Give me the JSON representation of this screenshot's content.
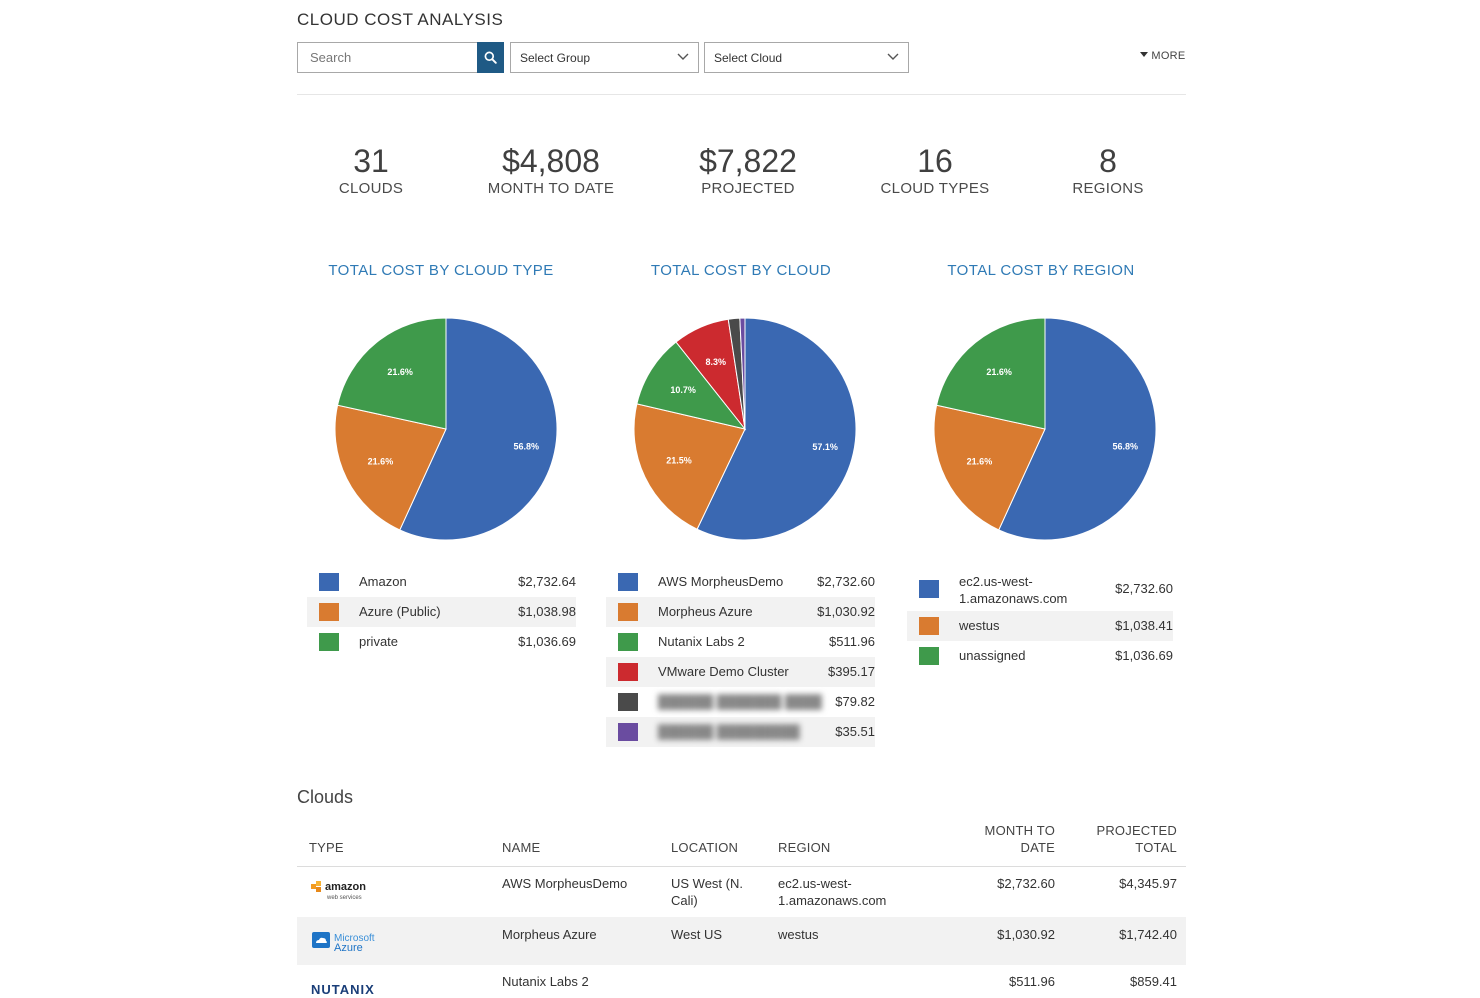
{
  "page_title": "CLOUD COST ANALYSIS",
  "filters": {
    "search_placeholder": "Search",
    "group_select": "Select Group",
    "cloud_select": "Select Cloud",
    "more_label": "MORE"
  },
  "stats": [
    {
      "value": "31",
      "label": "CLOUDS"
    },
    {
      "value": "$4,808",
      "label": "MONTH TO DATE"
    },
    {
      "value": "$7,822",
      "label": "PROJECTED"
    },
    {
      "value": "16",
      "label": "CLOUD TYPES"
    },
    {
      "value": "8",
      "label": "REGIONS"
    }
  ],
  "chart_data": [
    {
      "type": "pie",
      "title": "TOTAL COST BY CLOUD TYPE",
      "slices": [
        {
          "name": "Amazon",
          "value": 2732.64,
          "display": "$2,732.64",
          "pct_label": "56.8%",
          "color": "#3a68b2"
        },
        {
          "name": "Azure (Public)",
          "value": 1038.98,
          "display": "$1,038.98",
          "pct_label": "21.6%",
          "color": "#d97b30"
        },
        {
          "name": "private",
          "value": 1036.69,
          "display": "$1,036.69",
          "pct_label": "21.6%",
          "color": "#3f9a4b"
        }
      ]
    },
    {
      "type": "pie",
      "title": "TOTAL COST BY CLOUD",
      "slices": [
        {
          "name": "AWS MorpheusDemo",
          "value": 2732.6,
          "display": "$2,732.60",
          "pct_label": "57.1%",
          "color": "#3a68b2"
        },
        {
          "name": "Morpheus Azure",
          "value": 1030.92,
          "display": "$1,030.92",
          "pct_label": "21.5%",
          "color": "#d97b30"
        },
        {
          "name": "Nutanix Labs 2",
          "value": 511.96,
          "display": "$511.96",
          "pct_label": "10.7%",
          "color": "#3f9a4b"
        },
        {
          "name": "VMware Demo Cluster",
          "value": 395.17,
          "display": "$395.17",
          "pct_label": "8.3%",
          "color": "#cc2a2f"
        },
        {
          "name": "",
          "value": 79.82,
          "display": "$79.82",
          "pct_label": "",
          "color": "#4a4a4a"
        },
        {
          "name": "",
          "value": 35.51,
          "display": "$35.51",
          "pct_label": "",
          "color": "#6a4ca0"
        }
      ]
    },
    {
      "type": "pie",
      "title": "TOTAL COST BY REGION",
      "slices": [
        {
          "name": "ec2.us-west-1.amazonaws.com",
          "value": 2732.6,
          "display": "$2,732.60",
          "pct_label": "56.8%",
          "color": "#3a68b2"
        },
        {
          "name": "westus",
          "value": 1038.41,
          "display": "$1,038.41",
          "pct_label": "21.6%",
          "color": "#d97b30"
        },
        {
          "name": "unassigned",
          "value": 1036.69,
          "display": "$1,036.69",
          "pct_label": "21.6%",
          "color": "#3f9a4b"
        }
      ]
    }
  ],
  "clouds_section": {
    "title": "Clouds",
    "headers": {
      "type": "TYPE",
      "name": "NAME",
      "location": "LOCATION",
      "region": "REGION",
      "mtd_1": "MONTH TO",
      "mtd_2": "DATE",
      "proj_1": "PROJECTED",
      "proj_2": "TOTAL"
    },
    "rows": [
      {
        "logo": "amazon-web-services-logo",
        "logo_text": "amazon",
        "logo_sub": "web services",
        "name": "AWS MorpheusDemo",
        "location_1": "US West (N.",
        "location_2": "Cali)",
        "region_1": "ec2.us-west-",
        "region_2": "1.amazonaws.com",
        "mtd": "$2,732.60",
        "projected": "$4,345.97"
      },
      {
        "logo": "microsoft-azure-logo",
        "logo_text": "Microsoft",
        "logo_sub": "Azure",
        "name": "Morpheus Azure",
        "location_1": "West US",
        "location_2": "",
        "region_1": "westus",
        "region_2": "",
        "mtd": "$1,030.92",
        "projected": "$1,742.40"
      },
      {
        "logo": "nutanix-logo",
        "logo_text": "NUTANIX",
        "logo_sub": "",
        "name": "Nutanix Labs 2",
        "location_1": "",
        "location_2": "",
        "region_1": "",
        "region_2": "",
        "mtd": "$511.96",
        "projected": "$859.41"
      }
    ]
  }
}
